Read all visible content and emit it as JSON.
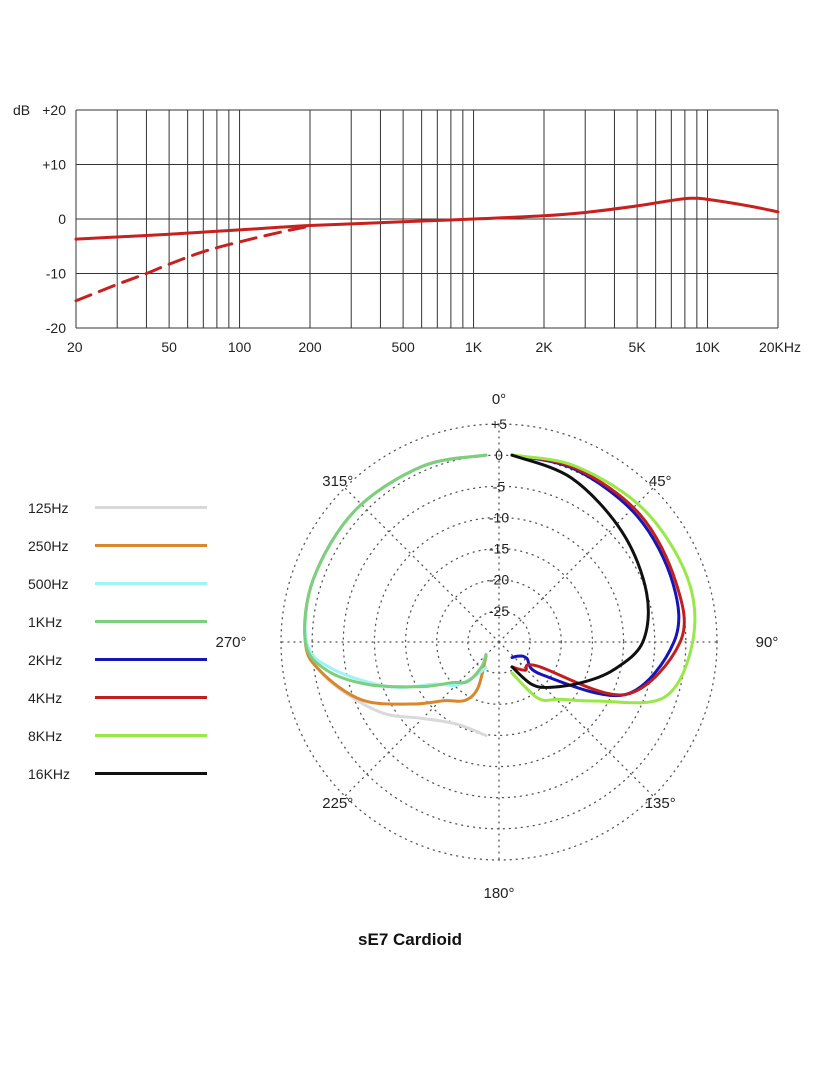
{
  "chart_data": [
    {
      "type": "line",
      "x_scale": "log",
      "xlim": [
        20,
        20000
      ],
      "ylim": [
        -20,
        20
      ],
      "grid": true,
      "y_unit_label": "dB",
      "ytick_labels": [
        "+20",
        "+10",
        "0",
        "-10",
        "-20"
      ],
      "yticks": [
        20,
        10,
        0,
        -10,
        -20
      ],
      "xtick_labels": [
        "20",
        "50",
        "100",
        "200",
        "500",
        "1K",
        "2K",
        "5K",
        "10K",
        "20KHz"
      ],
      "xticks": [
        20,
        50,
        100,
        200,
        500,
        1000,
        2000,
        5000,
        10000,
        20000
      ],
      "series": [
        {
          "color": "#c8201e",
          "style": "solid",
          "x": [
            20,
            30,
            50,
            70,
            100,
            150,
            200,
            300,
            500,
            1000,
            2000,
            3000,
            5000,
            7000,
            8500,
            10000,
            15000,
            20000
          ],
          "y": [
            -3.7,
            -3.3,
            -2.8,
            -2.4,
            -2.0,
            -1.5,
            -1.2,
            -0.9,
            -0.5,
            0,
            0.6,
            1.2,
            2.4,
            3.4,
            3.8,
            3.6,
            2.4,
            1.3
          ]
        },
        {
          "color": "#c8201e",
          "style": "dashed",
          "x": [
            20,
            30,
            40,
            50,
            70,
            100,
            150,
            200
          ],
          "y": [
            -15,
            -12,
            -10,
            -8.3,
            -6,
            -4.2,
            -2.4,
            -1.3
          ]
        }
      ]
    },
    {
      "type": "polar",
      "title": "sE7  Cardioid",
      "angle_labels": [
        {
          "deg": 0,
          "text": "0°"
        },
        {
          "deg": 45,
          "text": "45°"
        },
        {
          "deg": 90,
          "text": "90°"
        },
        {
          "deg": 135,
          "text": "135°"
        },
        {
          "deg": 180,
          "text": "180°"
        },
        {
          "deg": 225,
          "text": "225°"
        },
        {
          "deg": 270,
          "text": "270°"
        },
        {
          "deg": 315,
          "text": "315°"
        }
      ],
      "rings_db": [
        5,
        0,
        -5,
        -10,
        -15,
        -20,
        -25,
        -30
      ],
      "ring_labels": [
        "+5",
        "0",
        "-5",
        "-10",
        "-15",
        "-20",
        "-25"
      ],
      "r_db_range": [
        -30,
        5
      ],
      "series": [
        {
          "name": "125Hz",
          "color": "#d9d9d9",
          "side": "left",
          "deg": [
            180,
            200,
            220,
            235,
            250,
            260,
            270,
            290,
            315,
            340,
            360
          ],
          "db": [
            -15,
            -16,
            -14,
            -10,
            -6,
            -3,
            -1,
            -0.5,
            -0.2,
            0,
            0
          ]
        },
        {
          "name": "250Hz",
          "color": "#d9862c",
          "side": "left",
          "deg": [
            180,
            190,
            200,
            215,
            230,
            245,
            260,
            270,
            290,
            315,
            340,
            360
          ],
          "db": [
            -27.7,
            -22.5,
            -20,
            -18.5,
            -14.5,
            -8,
            -3,
            -1,
            -0.5,
            -0.2,
            0,
            0
          ]
        },
        {
          "name": "500Hz",
          "color": "#9ff3f3",
          "side": "left",
          "deg": [
            180,
            200,
            215,
            230,
            245,
            260,
            270,
            290,
            315,
            340,
            360
          ],
          "db": [
            -25.9,
            -24,
            -21.5,
            -19.5,
            -13,
            -5,
            -1.2,
            -0.5,
            -0.2,
            0,
            0
          ]
        },
        {
          "name": "1KHz",
          "color": "#7dce7d",
          "side": "left",
          "deg": [
            180,
            190,
            205,
            220,
            235,
            250,
            260,
            270,
            290,
            315,
            340,
            360
          ],
          "db": [
            -28,
            -26,
            -23,
            -21.5,
            -17.5,
            -10,
            -4,
            -1,
            -0.5,
            -0.2,
            0,
            0
          ]
        },
        {
          "name": "2KHz",
          "color": "#1515b8",
          "side": "right",
          "deg": [
            0,
            20,
            45,
            70,
            90,
            115,
            138,
            138,
            155,
            180
          ],
          "db": [
            0,
            -0.5,
            -1.5,
            -2.5,
            -4,
            -10,
            -23,
            -26.5,
            -27.5,
            -27.5
          ]
        },
        {
          "name": "4KHz",
          "color": "#c31e1e",
          "side": "right",
          "deg": [
            0,
            20,
            45,
            70,
            90,
            115,
            134,
            155,
            180
          ],
          "db": [
            0,
            -0.3,
            -1,
            -2,
            -3,
            -10,
            -24.5,
            -25,
            -26
          ]
        },
        {
          "name": "8KHz",
          "color": "#98e848",
          "side": "right",
          "deg": [
            0,
            20,
            45,
            70,
            90,
            110,
            125,
            140,
            155,
            180
          ],
          "db": [
            0,
            0,
            0,
            0,
            -1,
            -4,
            -13.5,
            -18,
            -20,
            -25
          ]
        },
        {
          "name": "16KHz",
          "color": "#101010",
          "side": "right",
          "deg": [
            0,
            20,
            45,
            70,
            90,
            105,
            120,
            140,
            155,
            180
          ],
          "db": [
            0,
            -2,
            -5,
            -7,
            -9,
            -13,
            -17,
            -20.5,
            -22.5,
            -26
          ]
        }
      ]
    }
  ]
}
